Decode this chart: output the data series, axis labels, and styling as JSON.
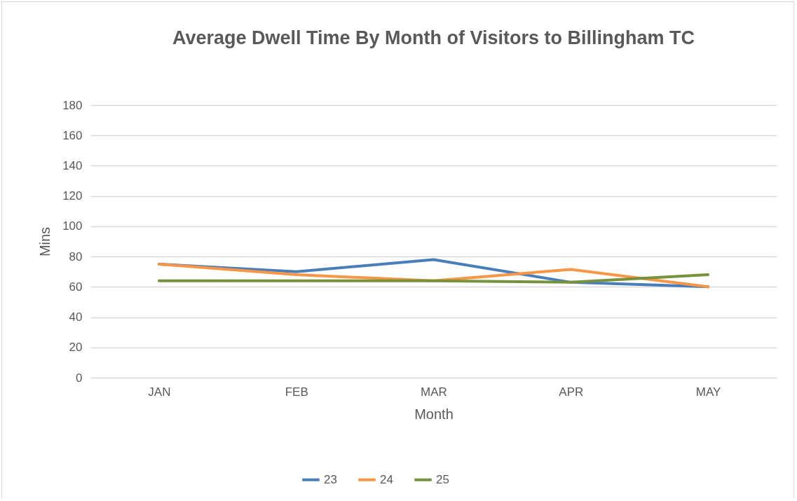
{
  "chart_data": {
    "type": "line",
    "title": "Average Dwell Time By Month of Visitors to Billingham TC",
    "xlabel": "Month",
    "ylabel": "Mins",
    "categories": [
      "JAN",
      "FEB",
      "MAR",
      "APR",
      "MAY"
    ],
    "series": [
      {
        "name": "23",
        "color": "#4a7ebb",
        "values": [
          75,
          70,
          78,
          63,
          60
        ]
      },
      {
        "name": "24",
        "color": "#f79646",
        "values": [
          75,
          68,
          64,
          71.5,
          60
        ]
      },
      {
        "name": "25",
        "color": "#76923c",
        "values": [
          64,
          64,
          64,
          63,
          68
        ]
      }
    ],
    "ylim": [
      0,
      180
    ],
    "yticks": [
      0,
      20,
      40,
      60,
      80,
      100,
      120,
      140,
      160,
      180
    ],
    "grid": "y",
    "legend": "bottom",
    "marker": "none",
    "line_style": "solid"
  }
}
